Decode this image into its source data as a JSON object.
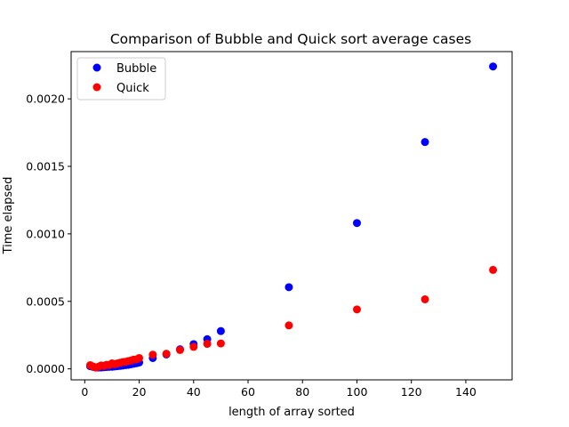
{
  "chart_data": {
    "type": "scatter",
    "title": "Comparison of Bubble and Quick sort average cases",
    "xlabel": "length of array sorted",
    "ylabel": "Time elapsed",
    "xlim": [
      -5,
      157
    ],
    "ylim": [
      -8.15e-05,
      0.00235
    ],
    "xticks": [
      {
        "value": 0,
        "label": "0"
      },
      {
        "value": 20,
        "label": "20"
      },
      {
        "value": 40,
        "label": "40"
      },
      {
        "value": 60,
        "label": "60"
      },
      {
        "value": 80,
        "label": "80"
      },
      {
        "value": 100,
        "label": "100"
      },
      {
        "value": 120,
        "label": "120"
      },
      {
        "value": 140,
        "label": "140"
      }
    ],
    "yticks": [
      {
        "value": 0,
        "label": "0.0000"
      },
      {
        "value": 0.0005,
        "label": "0.0005"
      },
      {
        "value": 0.001,
        "label": "0.0010"
      },
      {
        "value": 0.0015,
        "label": "0.0015"
      },
      {
        "value": 0.002,
        "label": "0.0020"
      }
    ],
    "grid": false,
    "legend_position": "top-left",
    "series": [
      {
        "name": "Bubble",
        "color": "#0000ff",
        "points": [
          [
            2,
            2e-05
          ],
          [
            3,
            1.5e-05
          ],
          [
            4,
            1e-05
          ],
          [
            5,
            1e-05
          ],
          [
            6,
            1e-05
          ],
          [
            7,
            1.2e-05
          ],
          [
            8,
            1.4e-05
          ],
          [
            9,
            1.5e-05
          ],
          [
            10,
            1.6e-05
          ],
          [
            11,
            1.8e-05
          ],
          [
            12,
            2e-05
          ],
          [
            13,
            2.2e-05
          ],
          [
            14,
            2.5e-05
          ],
          [
            15,
            2.8e-05
          ],
          [
            16,
            3e-05
          ],
          [
            17,
            3.4e-05
          ],
          [
            18,
            3.8e-05
          ],
          [
            19,
            4.2e-05
          ],
          [
            20,
            4.7e-05
          ],
          [
            25,
            8e-05
          ],
          [
            30,
            0.000107
          ],
          [
            35,
            0.000145
          ],
          [
            40,
            0.000183
          ],
          [
            45,
            0.00022
          ],
          [
            50,
            0.00028
          ],
          [
            75,
            0.000605
          ],
          [
            100,
            0.00108
          ],
          [
            125,
            0.00168
          ],
          [
            150,
            0.00224
          ]
        ]
      },
      {
        "name": "Quick",
        "color": "#ff0000",
        "points": [
          [
            2,
            2.7e-05
          ],
          [
            3,
            1.8e-05
          ],
          [
            4,
            1e-05
          ],
          [
            5,
            1.5e-05
          ],
          [
            6,
            2.5e-05
          ],
          [
            7,
            2.2e-05
          ],
          [
            8,
            3e-05
          ],
          [
            9,
            2.8e-05
          ],
          [
            10,
            4e-05
          ],
          [
            11,
            3.5e-05
          ],
          [
            12,
            4e-05
          ],
          [
            13,
            4.5e-05
          ],
          [
            14,
            5e-05
          ],
          [
            15,
            5.2e-05
          ],
          [
            16,
            5.8e-05
          ],
          [
            17,
            6.2e-05
          ],
          [
            18,
            6.8e-05
          ],
          [
            19,
            7e-05
          ],
          [
            20,
            8e-05
          ],
          [
            25,
            0.000105
          ],
          [
            30,
            0.000112
          ],
          [
            35,
            0.00014
          ],
          [
            40,
            0.000163
          ],
          [
            45,
            0.000185
          ],
          [
            50,
            0.000188
          ],
          [
            75,
            0.000322
          ],
          [
            100,
            0.00044
          ],
          [
            125,
            0.000515
          ],
          [
            150,
            0.000733
          ]
        ]
      }
    ]
  }
}
